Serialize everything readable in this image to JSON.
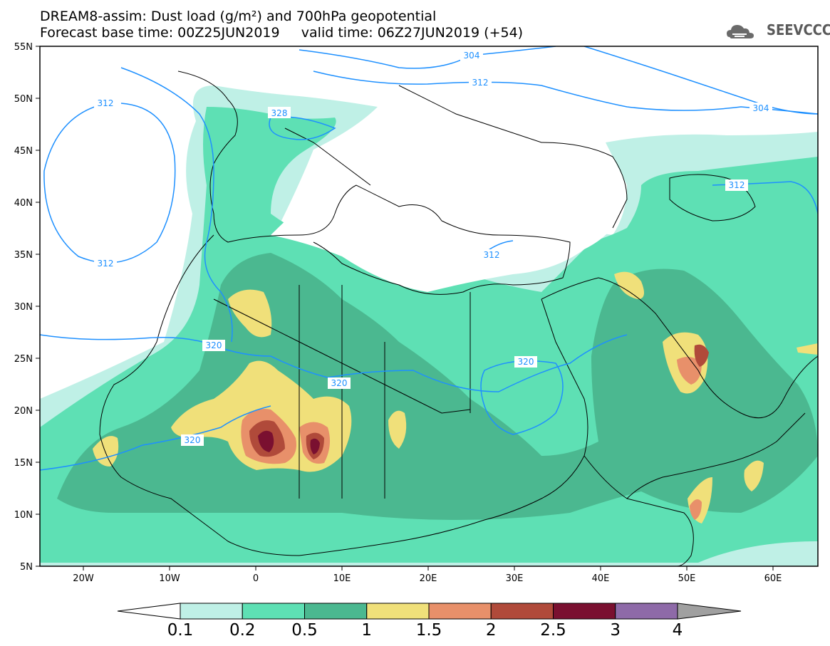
{
  "header": {
    "line1": "DREAM8-assim: Dust load (g/m²) and 700hPa geopotential",
    "line2": "Forecast base time: 00Z25JUN2019     valid time: 06Z27JUN2019 (+54)",
    "logo_text": "SEEVCCC"
  },
  "axes": {
    "lat_labels": [
      "55N",
      "50N",
      "45N",
      "40N",
      "35N",
      "30N",
      "25N",
      "20N",
      "15N",
      "10N",
      "5N"
    ],
    "lon_labels": [
      "20W",
      "10W",
      "0",
      "10E",
      "20E",
      "30E",
      "40E",
      "50E",
      "60E"
    ]
  },
  "contour_labels": [
    "304",
    "312",
    "304",
    "312",
    "328",
    "312",
    "312",
    "320",
    "320",
    "320",
    "320"
  ],
  "colorbar": {
    "labels": [
      "0.1",
      "0.2",
      "0.5",
      "1",
      "1.5",
      "2",
      "2.5",
      "3",
      "4"
    ],
    "colors": [
      "#bff0e6",
      "#5ee0b4",
      "#4bb890",
      "#f0e07a",
      "#e8906a",
      "#b04a3a",
      "#7a1030",
      "#8e6aa8"
    ],
    "over_color": "#a0a0a0"
  },
  "colors": {
    "contour": "#1e90ff",
    "land_line": "#000000"
  }
}
